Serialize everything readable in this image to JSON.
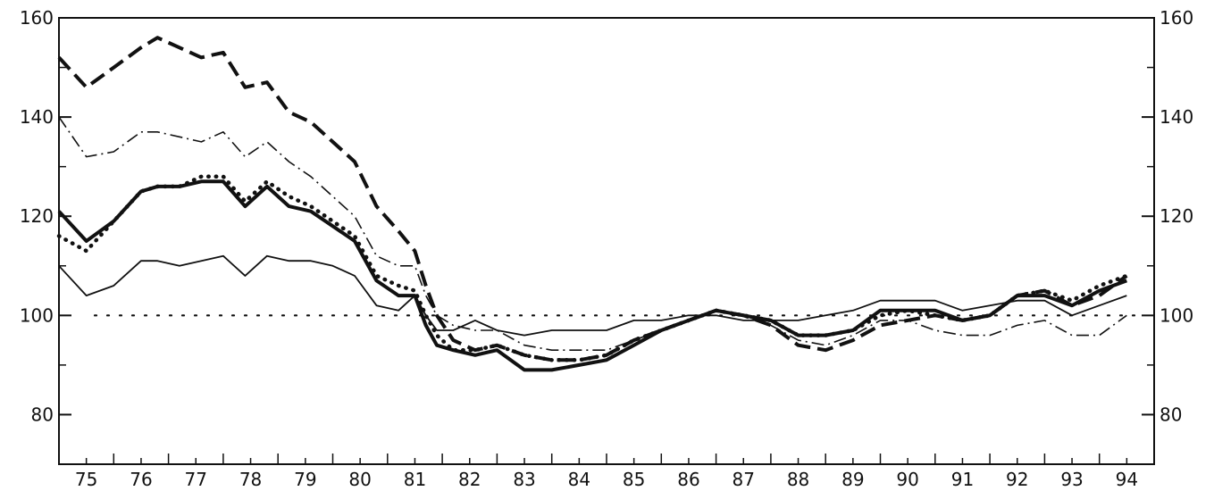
{
  "chart_data": {
    "type": "line",
    "title": "",
    "xlabel": "",
    "ylabel": "",
    "xlim": [
      75,
      95
    ],
    "ylim": [
      70,
      160
    ],
    "y_ticks": [
      80,
      100,
      120,
      140,
      160
    ],
    "x_tick_labels": [
      "75",
      "76",
      "77",
      "78",
      "79",
      "80",
      "81",
      "82",
      "83",
      "84",
      "85",
      "86",
      "87",
      "88",
      "89",
      "90",
      "91",
      "92",
      "93",
      "94"
    ],
    "grid": false,
    "reference_line": 100,
    "series": [
      {
        "style": "thick-dashed",
        "x": [
          75.0,
          75.5,
          76.0,
          76.5,
          76.8,
          77.2,
          77.6,
          78.0,
          78.4,
          78.8,
          79.2,
          79.6,
          80.0,
          80.4,
          80.8,
          81.2,
          81.5,
          81.7,
          81.9,
          82.2,
          82.6,
          83.0,
          83.5,
          84.0,
          84.5,
          85.0,
          85.5,
          86.0,
          86.5,
          87.0,
          87.5,
          88.0,
          88.5,
          89.0,
          89.5,
          90.0,
          90.5,
          91.0,
          91.5,
          92.0,
          92.5,
          93.0,
          93.5,
          94.0,
          94.5
        ],
        "values": [
          152,
          146,
          150,
          154,
          156,
          154,
          152,
          153,
          146,
          147,
          141,
          139,
          135,
          131,
          122,
          117,
          113,
          106,
          100,
          95,
          93,
          94,
          92,
          91,
          91,
          92,
          95,
          97,
          99,
          101,
          100,
          98,
          94,
          93,
          95,
          98,
          99,
          100,
          99,
          100,
          104,
          105,
          102,
          104,
          108
        ]
      },
      {
        "style": "dash-dot",
        "x": [
          75.0,
          75.5,
          76.0,
          76.5,
          76.8,
          77.2,
          77.6,
          78.0,
          78.4,
          78.8,
          79.2,
          79.6,
          80.0,
          80.4,
          80.8,
          81.2,
          81.5,
          81.7,
          81.9,
          82.2,
          82.6,
          83.0,
          83.5,
          84.0,
          84.5,
          85.0,
          85.5,
          86.0,
          86.5,
          87.0,
          87.5,
          88.0,
          88.5,
          89.0,
          89.5,
          90.0,
          90.5,
          91.0,
          91.5,
          92.0,
          92.5,
          93.0,
          93.5,
          94.0,
          94.5
        ],
        "values": [
          140,
          132,
          133,
          137,
          137,
          136,
          135,
          137,
          132,
          135,
          131,
          128,
          124,
          120,
          112,
          110,
          110,
          104,
          100,
          98,
          97,
          97,
          94,
          93,
          93,
          93,
          95,
          97,
          99,
          101,
          100,
          98,
          95,
          94,
          96,
          99,
          99,
          97,
          96,
          96,
          98,
          99,
          96,
          96,
          100
        ]
      },
      {
        "style": "dotted-heavy",
        "x": [
          75.0,
          75.5,
          76.0,
          76.5,
          76.8,
          77.2,
          77.6,
          78.0,
          78.4,
          78.8,
          79.2,
          79.6,
          80.0,
          80.4,
          80.8,
          81.2,
          81.5,
          81.7,
          81.9,
          82.2,
          82.6,
          83.0,
          83.5,
          84.0,
          84.5,
          85.0,
          85.5,
          86.0,
          86.5,
          87.0,
          87.5,
          88.0,
          88.5,
          89.0,
          89.5,
          90.0,
          90.5,
          91.0,
          91.5,
          92.0,
          92.5,
          93.0,
          93.5,
          94.0,
          94.5
        ],
        "values": [
          116,
          113,
          119,
          125,
          126,
          126,
          128,
          128,
          123,
          127,
          124,
          122,
          119,
          116,
          108,
          106,
          105,
          100,
          96,
          93,
          93,
          94,
          92,
          91,
          91,
          92,
          95,
          97,
          99,
          101,
          100,
          99,
          96,
          96,
          97,
          100,
          101,
          100,
          99,
          100,
          104,
          105,
          103,
          106,
          108
        ]
      },
      {
        "style": "thick-solid",
        "x": [
          75.0,
          75.5,
          76.0,
          76.5,
          76.8,
          77.2,
          77.6,
          78.0,
          78.4,
          78.8,
          79.2,
          79.6,
          80.0,
          80.4,
          80.8,
          81.2,
          81.5,
          81.7,
          81.9,
          82.2,
          82.6,
          83.0,
          83.5,
          84.0,
          84.5,
          85.0,
          85.5,
          86.0,
          86.5,
          87.0,
          87.5,
          88.0,
          88.5,
          89.0,
          89.5,
          90.0,
          90.5,
          91.0,
          91.5,
          92.0,
          92.5,
          93.0,
          93.5,
          94.0,
          94.5
        ],
        "values": [
          121,
          115,
          119,
          125,
          126,
          126,
          127,
          127,
          122,
          126,
          122,
          121,
          118,
          115,
          107,
          104,
          104,
          98,
          94,
          93,
          92,
          93,
          89,
          89,
          90,
          91,
          94,
          97,
          99,
          101,
          100,
          99,
          96,
          96,
          97,
          101,
          101,
          101,
          99,
          100,
          104,
          104,
          102,
          105,
          107
        ]
      },
      {
        "style": "thin-solid",
        "x": [
          75.0,
          75.5,
          76.0,
          76.5,
          76.8,
          77.2,
          77.6,
          78.0,
          78.4,
          78.8,
          79.2,
          79.6,
          80.0,
          80.4,
          80.8,
          81.2,
          81.5,
          81.7,
          81.9,
          82.2,
          82.6,
          83.0,
          83.5,
          84.0,
          84.5,
          85.0,
          85.5,
          86.0,
          86.5,
          87.0,
          87.5,
          88.0,
          88.5,
          89.0,
          89.5,
          90.0,
          90.5,
          91.0,
          91.5,
          92.0,
          92.5,
          93.0,
          93.5,
          94.0,
          94.5
        ],
        "values": [
          110,
          104,
          106,
          111,
          111,
          110,
          111,
          112,
          108,
          112,
          111,
          111,
          110,
          108,
          102,
          101,
          104,
          100,
          97,
          97,
          99,
          97,
          96,
          97,
          97,
          97,
          99,
          99,
          100,
          100,
          99,
          99,
          99,
          100,
          101,
          103,
          103,
          103,
          101,
          102,
          103,
          103,
          100,
          102,
          104
        ]
      }
    ]
  }
}
